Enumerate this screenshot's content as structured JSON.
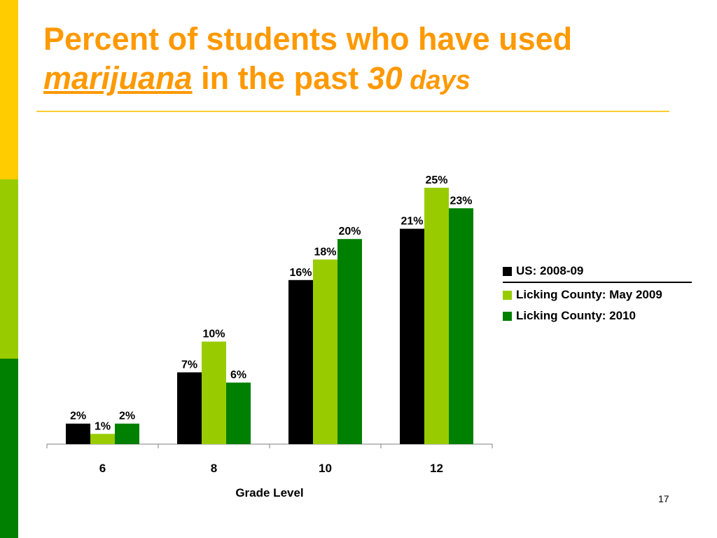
{
  "title": {
    "line1": "Percent of students who have used",
    "word_underlined": "marijuana",
    "middle": " in the past ",
    "number": "30",
    "days": " days"
  },
  "page_number": "17",
  "colors": {
    "us": "#000000",
    "may2009": "#99CC00",
    "c2010": "#008000",
    "title": "#FF9900"
  },
  "chart_data": {
    "type": "bar",
    "xlabel": "Grade Level",
    "categories": [
      "6",
      "8",
      "10",
      "12"
    ],
    "ylim": [
      0,
      25
    ],
    "grid": false,
    "legend_position": "right",
    "series": [
      {
        "name": "US: 2008-09",
        "values": [
          2,
          7,
          16,
          21
        ],
        "labels": [
          "2%",
          "7%",
          "16%",
          "21%"
        ],
        "color": "#000000"
      },
      {
        "name": "Licking County: May 2009",
        "values": [
          1,
          10,
          18,
          25
        ],
        "labels": [
          "1%",
          "10%",
          "18%",
          "25%"
        ],
        "color": "#99CC00"
      },
      {
        "name": "Licking County: 2010",
        "values": [
          2,
          6,
          20,
          23
        ],
        "labels": [
          "2%",
          "6%",
          "20%",
          "23%"
        ],
        "color": "#008000"
      }
    ]
  }
}
